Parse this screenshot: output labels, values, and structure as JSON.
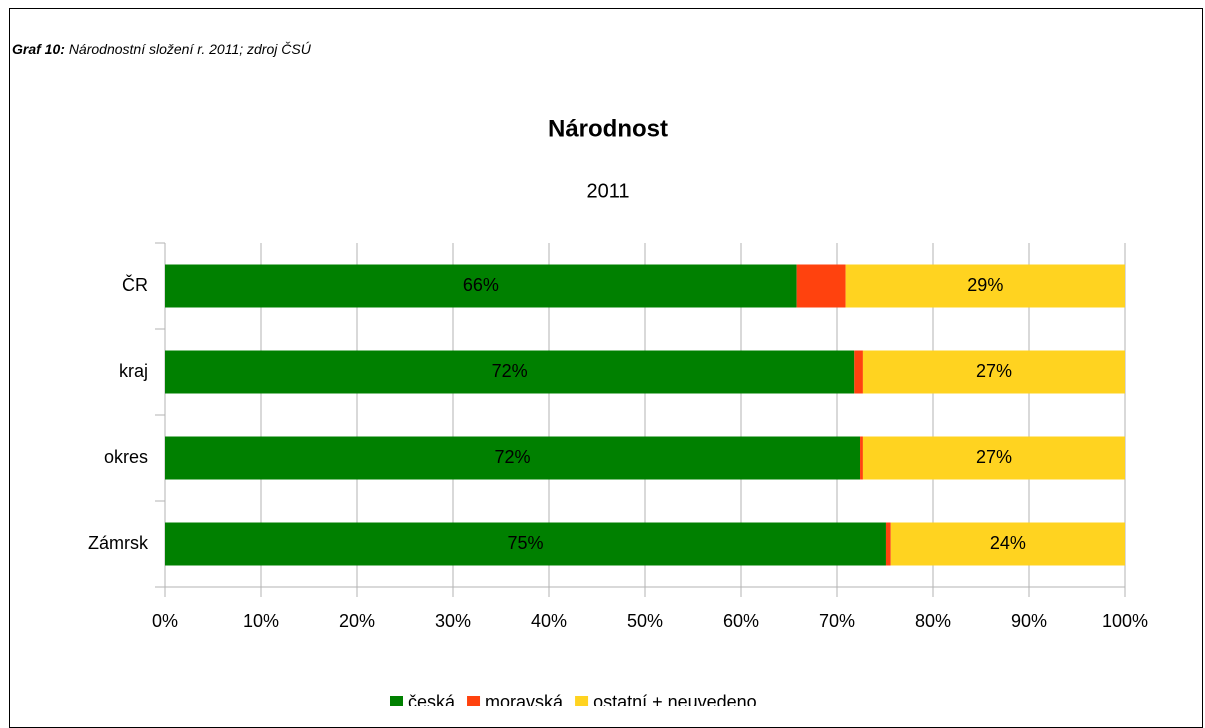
{
  "caption": {
    "label": "Graf 10:",
    "text": "Národnostní složení r. 2011; zdroj ČSÚ"
  },
  "chart_data": {
    "type": "stacked-barh",
    "title": "Národnost",
    "subtitle": "2011",
    "categories": [
      "ČR",
      "kraj",
      "okres",
      "Zámrsk"
    ],
    "series": [
      {
        "name": "česká",
        "color": "#008000",
        "values": [
          65.8,
          71.8,
          72.4,
          75.1
        ],
        "value_labels": [
          "66%",
          "72%",
          "72%",
          "75%"
        ]
      },
      {
        "name": "moravská",
        "color": "#ff420e",
        "values": [
          5.1,
          0.9,
          0.3,
          0.5
        ]
      },
      {
        "name": "ostatní + neuvedeno",
        "color": "#ffd320",
        "values": [
          29.1,
          27.3,
          27.3,
          24.4
        ],
        "value_labels": [
          "29%",
          "27%",
          "27%",
          "24%"
        ]
      }
    ],
    "xlim": [
      0,
      100
    ],
    "xticks": [
      {
        "value": 0,
        "label": "0%"
      },
      {
        "value": 10,
        "label": "10%"
      },
      {
        "value": 20,
        "label": "20%"
      },
      {
        "value": 30,
        "label": "30%"
      },
      {
        "value": 40,
        "label": "40%"
      },
      {
        "value": 50,
        "label": "50%"
      },
      {
        "value": 60,
        "label": "60%"
      },
      {
        "value": 70,
        "label": "70%"
      },
      {
        "value": 80,
        "label": "80%"
      },
      {
        "value": 90,
        "label": "90%"
      },
      {
        "value": 100,
        "label": "100%"
      }
    ],
    "grid": true,
    "legend": "bottom"
  }
}
